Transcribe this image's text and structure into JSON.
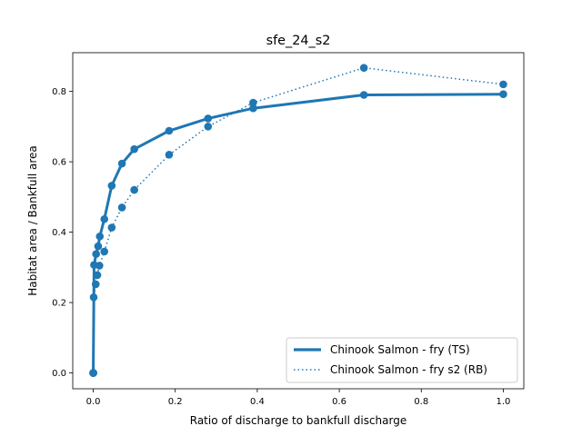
{
  "chart_data": {
    "type": "line",
    "title": "sfe_24_s2",
    "xlabel": "Ratio of discharge to bankfull discharge",
    "ylabel": "Habitat area / Bankfull area",
    "xlim": [
      -0.05,
      1.05
    ],
    "ylim": [
      -0.045,
      0.91
    ],
    "xticks": [
      0.0,
      0.2,
      0.4,
      0.6,
      0.8,
      1.0
    ],
    "xtick_labels": [
      "0.0",
      "0.2",
      "0.4",
      "0.6",
      "0.8",
      "1.0"
    ],
    "yticks": [
      0.0,
      0.2,
      0.4,
      0.6,
      0.8
    ],
    "ytick_labels": [
      "0.0",
      "0.2",
      "0.4",
      "0.6",
      "0.8"
    ],
    "grid": false,
    "legend_position": "lower-right",
    "series": [
      {
        "name": "Chinook Salmon - fry (TS)",
        "style": "solid",
        "color": "#1f77b4",
        "x": [
          0.0,
          0.0,
          0.002,
          0.007,
          0.012,
          0.016,
          0.027,
          0.045,
          0.07,
          0.1,
          0.185,
          0.28,
          0.39,
          0.66,
          1.0
        ],
        "y": [
          0.0,
          0.0,
          0.307,
          0.338,
          0.36,
          0.388,
          0.437,
          0.532,
          0.595,
          0.636,
          0.688,
          0.723,
          0.752,
          0.79,
          0.792
        ]
      },
      {
        "name": "Chinook Salmon - fry s2 (RB)",
        "style": "dotted",
        "color": "#1f77b4",
        "x": [
          0.0,
          0.0,
          0.001,
          0.006,
          0.01,
          0.015,
          0.027,
          0.045,
          0.07,
          0.1,
          0.185,
          0.28,
          0.39,
          0.66,
          1.0
        ],
        "y": [
          0.0,
          0.0,
          0.215,
          0.252,
          0.278,
          0.305,
          0.345,
          0.413,
          0.47,
          0.52,
          0.62,
          0.7,
          0.768,
          0.867,
          0.82
        ]
      }
    ]
  }
}
